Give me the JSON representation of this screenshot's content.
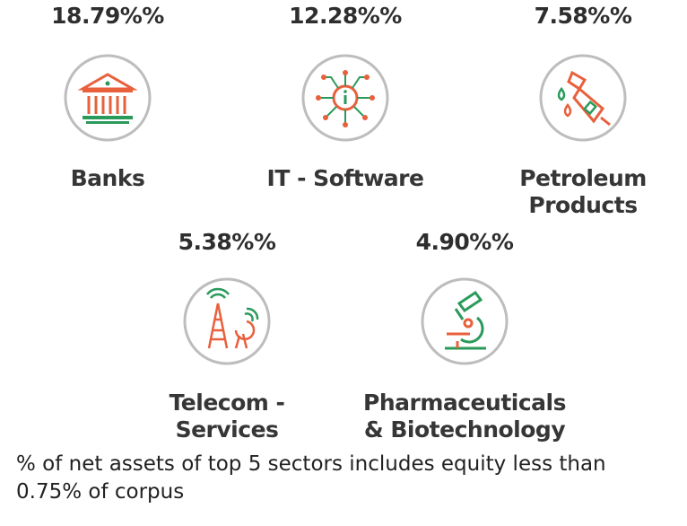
{
  "chart_data": {
    "type": "table",
    "categories": [
      "Banks",
      "IT - Software",
      "Petroleum Products",
      "Telecom - Services",
      "Pharmaceuticals & Biotechnology"
    ],
    "values": [
      18.79,
      12.28,
      7.58,
      5.38,
      4.9
    ]
  },
  "sectors": [
    {
      "pct": "18.79%%",
      "label1": "Banks",
      "label2": "",
      "icon": "bank-icon"
    },
    {
      "pct": "12.28%%",
      "label1": "IT - Software",
      "label2": "",
      "icon": "chip-icon"
    },
    {
      "pct": "7.58%%",
      "label1": "Petroleum",
      "label2": "Products",
      "icon": "fuel-nozzle-icon"
    },
    {
      "pct": "5.38%%",
      "label1": "Telecom -",
      "label2": "Services",
      "icon": "telecom-tower-icon"
    },
    {
      "pct": "4.90%%",
      "label1": "Pharmaceuticals",
      "label2": "& Biotechnology",
      "icon": "microscope-icon"
    }
  ],
  "footnote": {
    "line1": "% of net assets of top 5 sectors includes equity less than",
    "line2": "0.75% of corpus"
  },
  "colors": {
    "accent_red": "#e8603c",
    "accent_green": "#2a9a5a",
    "circle": "#bdbdbd"
  }
}
